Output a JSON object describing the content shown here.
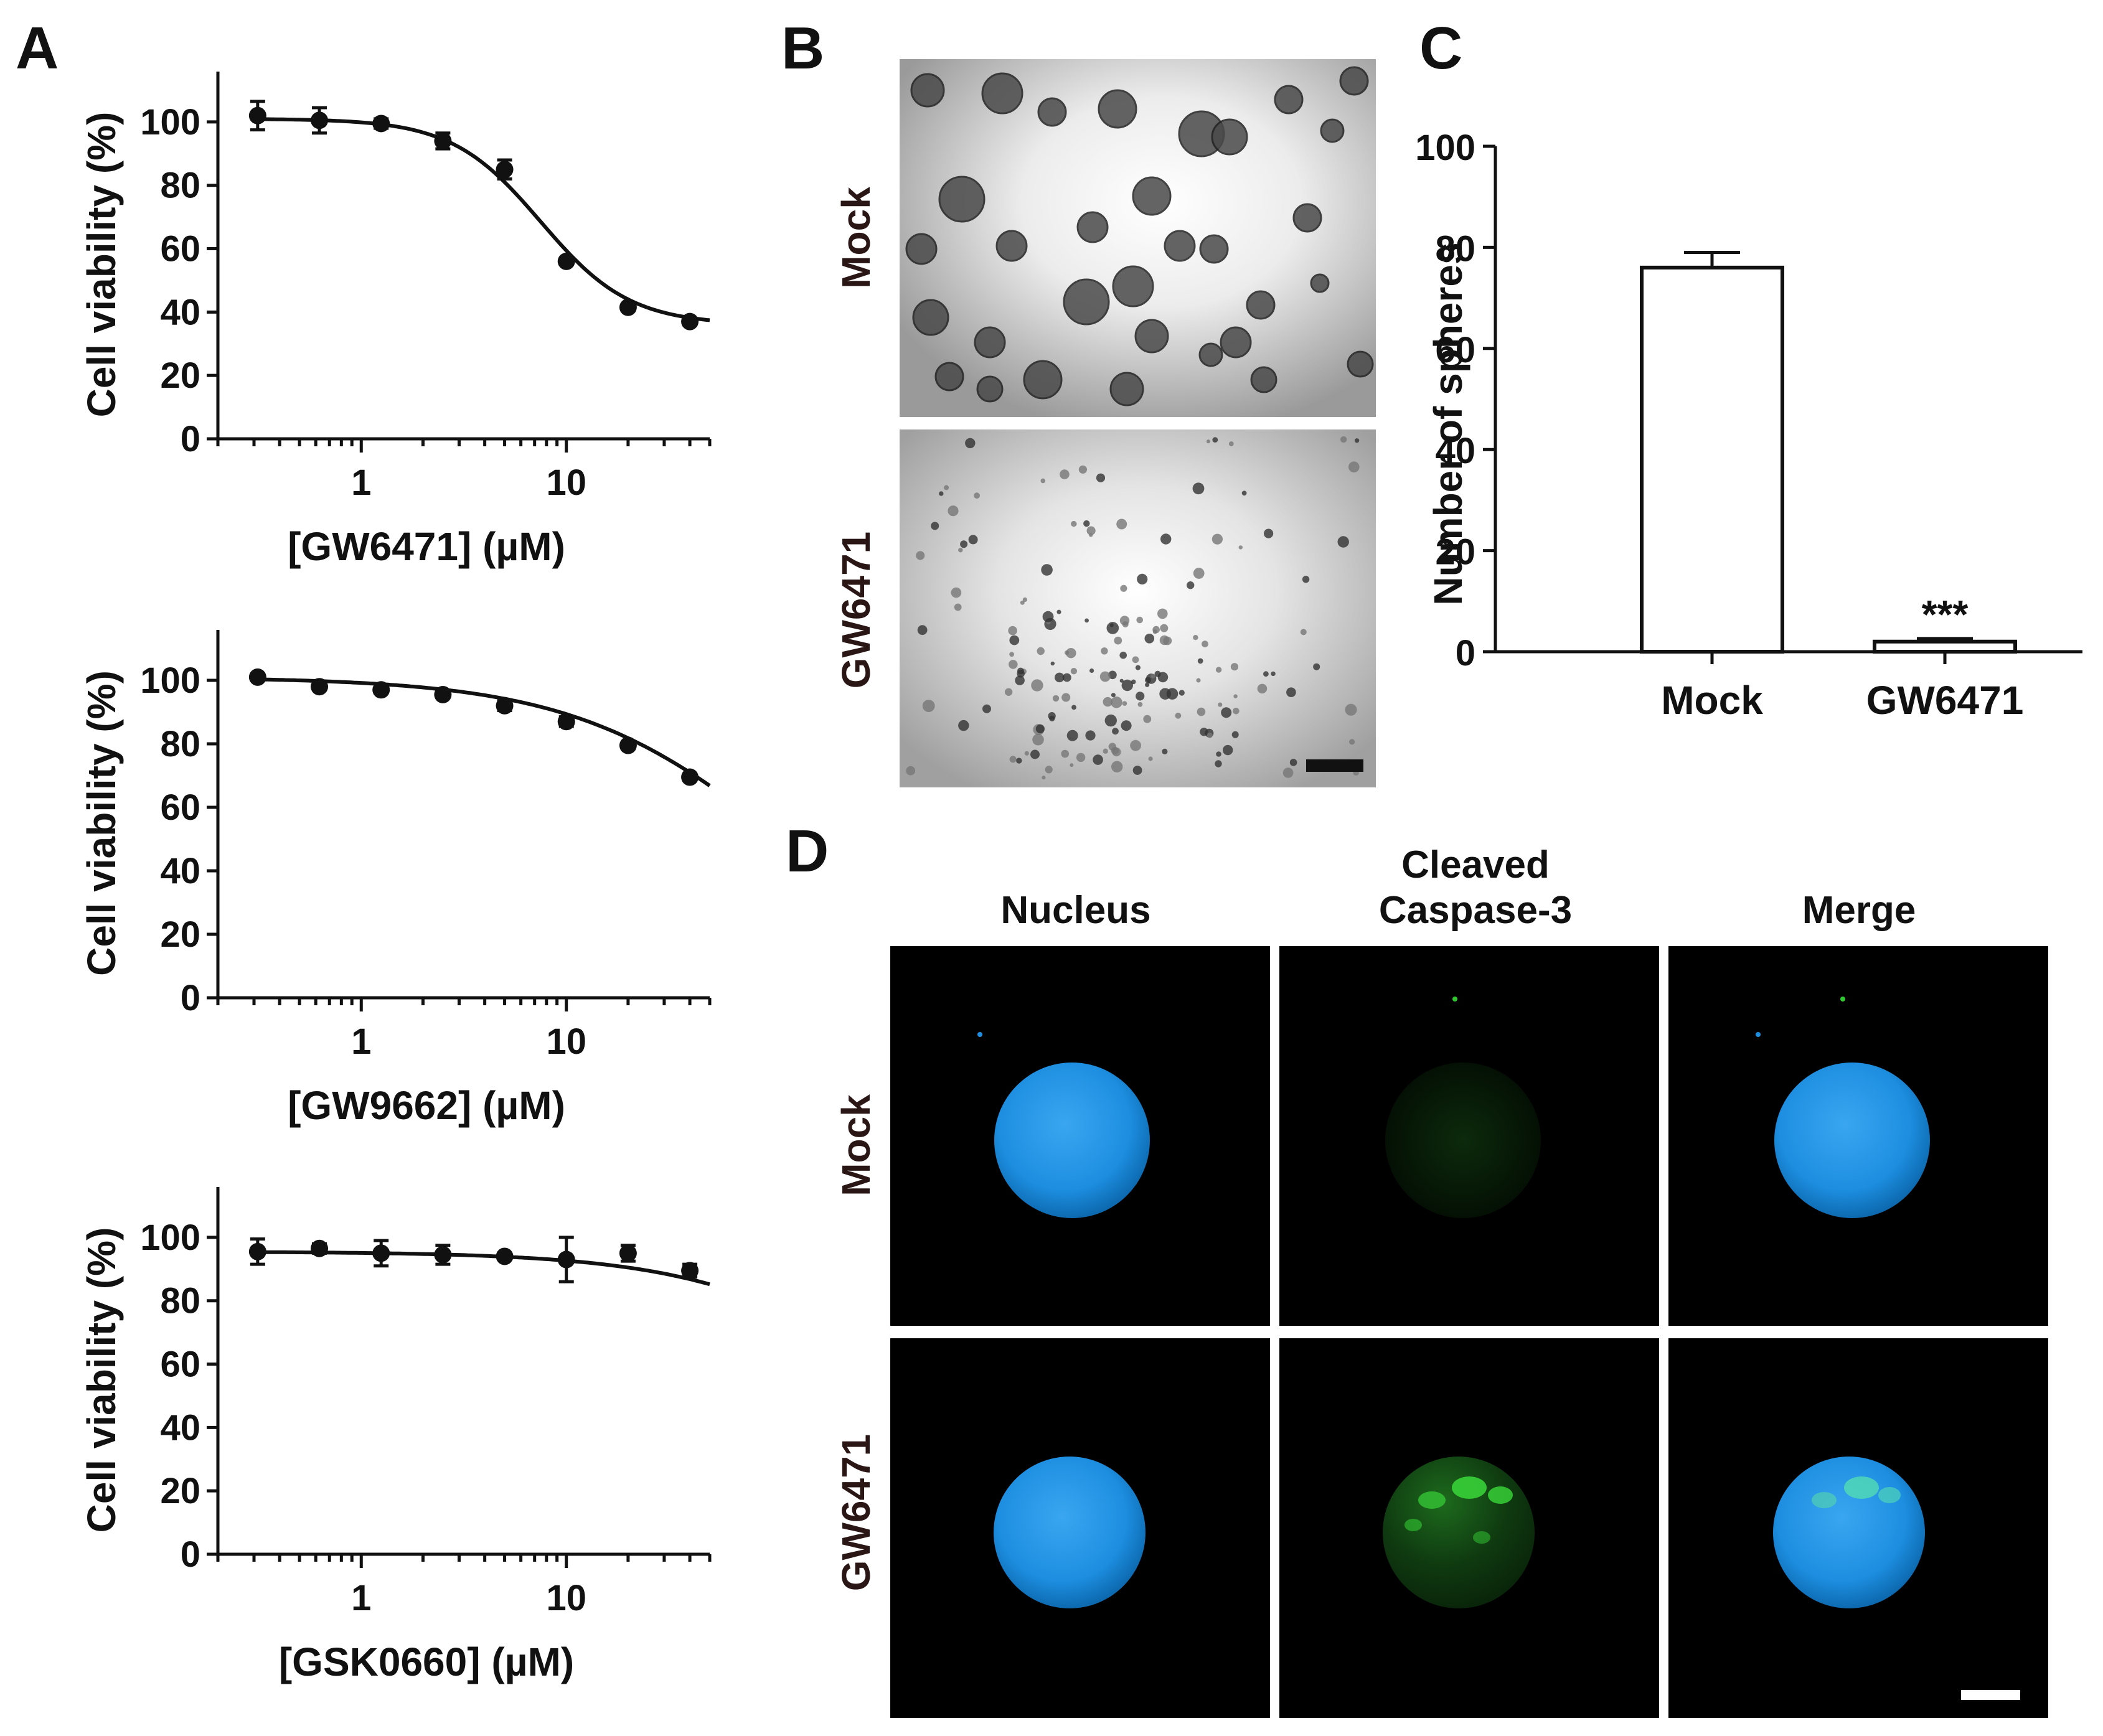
{
  "panel_labels": [
    "A",
    "B",
    "C",
    "D"
  ],
  "panel_a": {
    "charts": [
      {
        "type": "scatter",
        "xlabel": "[GW6471] (µM)",
        "ylabel": "Cell viability (%)",
        "xscale": "log",
        "xlim": [
          0.2,
          50
        ],
        "ylim": [
          0,
          110
        ],
        "xticks": [
          "1",
          "10"
        ],
        "yticks": [
          "0",
          "20",
          "40",
          "60",
          "80",
          "100"
        ],
        "x": [
          0.3125,
          0.625,
          1.25,
          2.5,
          5,
          10,
          20,
          40
        ],
        "y": [
          102,
          100.5,
          99.5,
          94,
          85,
          56,
          41.5,
          37
        ],
        "err": [
          4.5,
          4,
          1.5,
          2.5,
          3,
          1,
          1,
          1
        ],
        "fit": {
          "top": 101,
          "bottom": 36,
          "ec50": 7.5,
          "hill": 2.0
        }
      },
      {
        "type": "scatter",
        "xlabel": "[GW9662] (µM)",
        "ylabel": "Cell viability (%)",
        "xscale": "log",
        "xlim": [
          0.2,
          50
        ],
        "ylim": [
          0,
          110
        ],
        "xticks": [
          "1",
          "10"
        ],
        "yticks": [
          "0",
          "20",
          "40",
          "60",
          "80",
          "100"
        ],
        "x": [
          0.3125,
          0.625,
          1.25,
          2.5,
          5,
          10,
          20,
          40
        ],
        "y": [
          101,
          98,
          97,
          95.5,
          92,
          87,
          79.5,
          69.5
        ],
        "err": [
          1,
          1,
          1,
          1,
          1.5,
          1.5,
          1,
          1
        ],
        "fit": {
          "top": 101,
          "bottom": 0,
          "ec50": 110,
          "hill": 0.85
        }
      },
      {
        "type": "scatter",
        "xlabel": "[GSK0660] (µM)",
        "ylabel": "Cell viability (%)",
        "xscale": "log",
        "xlim": [
          0.2,
          50
        ],
        "ylim": [
          0,
          110
        ],
        "xticks": [
          "1",
          "10"
        ],
        "yticks": [
          "0",
          "20",
          "40",
          "60",
          "80",
          "100"
        ],
        "x": [
          0.3125,
          0.625,
          1.25,
          2.5,
          5,
          10,
          20,
          40
        ],
        "y": [
          95.5,
          96.5,
          95,
          94.5,
          94,
          93,
          95,
          89.5
        ],
        "err": [
          4,
          1.5,
          4,
          3,
          1,
          7,
          2.5,
          2
        ],
        "fit": {
          "top": 95.5,
          "bottom": 0,
          "ec50": 600,
          "hill": 0.85
        }
      }
    ]
  },
  "panel_b": {
    "rows": [
      "Mock",
      "GW6471"
    ]
  },
  "chart_data": {
    "type": "bar",
    "categories": [
      "Mock",
      "GW6471"
    ],
    "values": [
      76,
      2
    ],
    "errors": [
      3,
      0.6
    ],
    "annotations": [
      "",
      "***"
    ],
    "ylabel": "Number of spheres",
    "ylim": [
      0,
      100
    ],
    "yticks": [
      "0",
      "20",
      "40",
      "60",
      "80",
      "100"
    ]
  },
  "panel_d": {
    "columns": [
      "Nucleus",
      "Cleaved",
      "Caspase-3",
      "Merge"
    ],
    "rows": [
      "Mock",
      "GW6471"
    ],
    "colors": {
      "nucleus": "#1e8fe0",
      "caspase": "#2ec82e",
      "background": "#000000"
    }
  }
}
